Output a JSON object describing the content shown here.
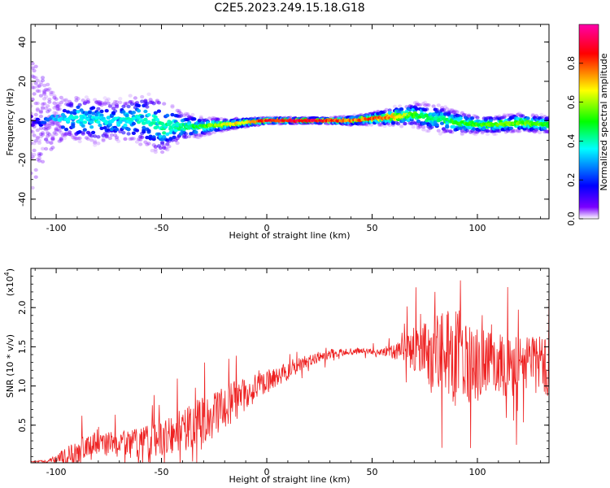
{
  "colors": {
    "background": "#ffffff",
    "snr_line": "#ee2222",
    "colormap": [
      "#ffffff",
      "#7b00ff",
      "#0000ff",
      "#00ffff",
      "#00ff00",
      "#ffff00",
      "#ff0000",
      "#ff00aa"
    ]
  },
  "chart_data": [
    {
      "type": "heatmap",
      "title": "C2E5.2023.249.15.18.G18",
      "xlabel": "Height of straight line (km)",
      "ylabel": "Frequency (Hz)",
      "xlim": [
        -112,
        134
      ],
      "ylim": [
        -50,
        49
      ],
      "x_ticks": [
        -100,
        -50,
        0,
        50,
        100
      ],
      "x_tick_labels": [
        "-100",
        "-50",
        "0",
        "50",
        "100"
      ],
      "y_ticks": [
        -40,
        -20,
        0,
        20,
        40
      ],
      "y_tick_labels": [
        "-40",
        "-20",
        "0",
        "20",
        "40"
      ],
      "colorbar": {
        "label": "Normalized spectral amplitude",
        "range": [
          0,
          1
        ],
        "ticks": [
          0.0,
          0.2,
          0.4,
          0.6,
          0.8
        ],
        "tick_labels": [
          "0.0",
          "0.2",
          "0.4",
          "0.6",
          "0.8"
        ]
      },
      "ridge": {
        "x": [
          -112,
          -100,
          -90,
          -80,
          -70,
          -60,
          -50,
          -40,
          -30,
          -20,
          -10,
          0,
          10,
          20,
          30,
          40,
          50,
          60,
          70,
          80,
          90,
          100,
          110,
          120,
          134
        ],
        "center_hz": [
          0,
          1,
          1,
          0,
          0,
          1,
          -3,
          -3,
          -3,
          -2,
          -1,
          0,
          0,
          0,
          0,
          0,
          1,
          2,
          3,
          1,
          -1,
          -2,
          -2,
          -1,
          -2
        ],
        "spread_hz": [
          20,
          6,
          8,
          8,
          7,
          9,
          10,
          5,
          3,
          2,
          1.5,
          1,
          1,
          1,
          1,
          1.5,
          2,
          3,
          4,
          5,
          4,
          3,
          3,
          3,
          3
        ],
        "peak_amplitude": [
          0.1,
          0.35,
          0.4,
          0.38,
          0.38,
          0.4,
          0.45,
          0.45,
          0.55,
          0.7,
          0.75,
          0.9,
          0.95,
          0.95,
          0.9,
          0.8,
          0.85,
          0.8,
          0.55,
          0.45,
          0.55,
          0.55,
          0.6,
          0.6,
          0.55
        ]
      },
      "grid": false
    },
    {
      "type": "line",
      "xlabel": "Height of straight line (km)",
      "ylabel": "SNR (10 * v/v)",
      "scale_label": "(x10^4)",
      "scale_base": "(x10",
      "scale_exp": "4",
      "xlim": [
        -112,
        134
      ],
      "ylim": [
        0.02,
        2.5
      ],
      "x_ticks": [
        -100,
        -50,
        0,
        50,
        100
      ],
      "x_tick_labels": [
        "-100",
        "-50",
        "0",
        "50",
        "100"
      ],
      "y_ticks": [
        0.5,
        1.0,
        1.5,
        2.0
      ],
      "y_tick_labels": [
        "0.5",
        "1.0",
        "1.5",
        "2.0"
      ],
      "series": [
        {
          "x": [
            -112,
            -105,
            -100,
            -95,
            -90,
            -85,
            -80,
            -75,
            -70,
            -65,
            -60,
            -55,
            -50,
            -45,
            -40,
            -35,
            -30,
            -25,
            -20,
            -15,
            -10,
            -5,
            0,
            5,
            10,
            15,
            20,
            25,
            30,
            35,
            40,
            45,
            50,
            55,
            60,
            65,
            70,
            75,
            80,
            85,
            90,
            95,
            100,
            105,
            110,
            115,
            120,
            125,
            130,
            134
          ],
          "values": [
            0.03,
            0.04,
            0.06,
            0.1,
            0.18,
            0.22,
            0.24,
            0.25,
            0.26,
            0.26,
            0.27,
            0.3,
            0.33,
            0.38,
            0.43,
            0.5,
            0.57,
            0.64,
            0.72,
            0.82,
            0.9,
            0.97,
            1.05,
            1.12,
            1.2,
            1.27,
            1.33,
            1.38,
            1.41,
            1.43,
            1.44,
            1.45,
            1.44,
            1.43,
            1.44,
            1.45,
            1.45,
            1.43,
            1.42,
            1.4,
            1.37,
            1.33,
            1.3,
            1.28,
            1.27,
            1.27,
            1.28,
            1.28,
            1.27,
            1.27
          ],
          "noise": [
            0.01,
            0.02,
            0.05,
            0.12,
            0.18,
            0.18,
            0.16,
            0.16,
            0.16,
            0.18,
            0.2,
            0.22,
            0.25,
            0.25,
            0.28,
            0.3,
            0.3,
            0.28,
            0.28,
            0.25,
            0.2,
            0.18,
            0.15,
            0.13,
            0.12,
            0.1,
            0.08,
            0.07,
            0.06,
            0.05,
            0.04,
            0.04,
            0.04,
            0.06,
            0.1,
            0.18,
            0.3,
            0.45,
            0.55,
            0.6,
            0.65,
            0.55,
            0.5,
            0.45,
            0.4,
            0.4,
            0.4,
            0.4,
            0.4,
            0.4
          ]
        }
      ],
      "grid": false
    }
  ]
}
